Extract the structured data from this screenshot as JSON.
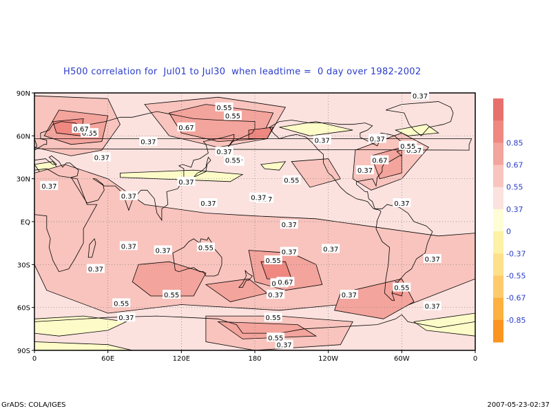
{
  "title": "H500 correlation for  Jul01 to Jul30  when leadtime =  0 day over 1982-2002",
  "footer": {
    "left": "GrADS: COLA/IGES",
    "right": "2007-05-23-02:37"
  },
  "axes": {
    "y_labels": [
      "90N",
      "60N",
      "30N",
      "EQ",
      "30S",
      "60S",
      "90S"
    ],
    "x_labels": [
      "0",
      "60E",
      "120E",
      "180",
      "120W",
      "60W",
      "0"
    ]
  },
  "legend": {
    "levels": [
      {
        "label": "",
        "color": "#e8706c"
      },
      {
        "label": "0.85",
        "color": "#ee8880"
      },
      {
        "label": "0.67",
        "color": "#f3a49c"
      },
      {
        "label": "0.55",
        "color": "#f8c4bd"
      },
      {
        "label": "0.37",
        "color": "#fbe2df"
      },
      {
        "label": "0",
        "color": "#fefdd6"
      },
      {
        "label": "-0.37",
        "color": "#fdf1a6"
      },
      {
        "label": "-0.55",
        "color": "#fde08a"
      },
      {
        "label": "-0.67",
        "color": "#fdcb6c"
      },
      {
        "label": "-0.85",
        "color": "#fcb140"
      },
      {
        "label": "",
        "color": "#fb9420"
      }
    ]
  },
  "colors": {
    "base": "#fbe2df",
    "level1": "#f8c4bd",
    "level2": "#f3a49c",
    "level3": "#ee8880",
    "neg1": "#fdfbc8",
    "title": "#2a3cc8"
  },
  "contour_labels": [
    {
      "text": "0.37",
      "lon": 315,
      "lat": 88
    },
    {
      "text": "0.37",
      "lon": 310,
      "lat": 50
    },
    {
      "text": "0.37",
      "lon": 280,
      "lat": 58
    },
    {
      "text": "0.37",
      "lon": 235,
      "lat": 57
    },
    {
      "text": "0.37",
      "lon": 270,
      "lat": 36
    },
    {
      "text": "0.37",
      "lon": 300,
      "lat": 13
    },
    {
      "text": "0.37",
      "lon": 188,
      "lat": 16
    },
    {
      "text": "0.37",
      "lon": 208,
      "lat": -2
    },
    {
      "text": "0.37",
      "lon": 242,
      "lat": -19
    },
    {
      "text": "0.37",
      "lon": 325,
      "lat": -26
    },
    {
      "text": "0.37",
      "lon": 257,
      "lat": -51
    },
    {
      "text": "0.37",
      "lon": 325,
      "lat": -59
    },
    {
      "text": "0.37",
      "lon": 197,
      "lat": -51
    },
    {
      "text": "0.37",
      "lon": 208,
      "lat": -21
    },
    {
      "text": "0.37",
      "lon": 183,
      "lat": 17
    },
    {
      "text": "0.37",
      "lon": 142,
      "lat": 13
    },
    {
      "text": "0.37",
      "lon": 124,
      "lat": 28
    },
    {
      "text": "0.37",
      "lon": 155,
      "lat": 49
    },
    {
      "text": "0.37",
      "lon": 164,
      "lat": 42
    },
    {
      "text": "0.37",
      "lon": 55,
      "lat": 45
    },
    {
      "text": "0.37",
      "lon": 93,
      "lat": 56
    },
    {
      "text": "0.37",
      "lon": 12,
      "lat": 25
    },
    {
      "text": "0.37",
      "lon": 77,
      "lat": 18
    },
    {
      "text": "0.37",
      "lon": 77,
      "lat": -17
    },
    {
      "text": "0.37",
      "lon": 105,
      "lat": -20
    },
    {
      "text": "0.37",
      "lon": 50,
      "lat": -33
    },
    {
      "text": "0.37",
      "lon": 75,
      "lat": -67
    },
    {
      "text": "0.37",
      "lon": 204,
      "lat": -86
    },
    {
      "text": "0.55",
      "lon": 155,
      "lat": 80
    },
    {
      "text": "0.55",
      "lon": 162,
      "lat": 74
    },
    {
      "text": "0.55",
      "lon": 162,
      "lat": 43
    },
    {
      "text": "0.55",
      "lon": 210,
      "lat": 29
    },
    {
      "text": "0.55",
      "lon": 305,
      "lat": 53
    },
    {
      "text": "0.55",
      "lon": 45,
      "lat": 62
    },
    {
      "text": "0.55",
      "lon": 140,
      "lat": -18
    },
    {
      "text": "0.55",
      "lon": 195,
      "lat": -27
    },
    {
      "text": "0.55",
      "lon": 200,
      "lat": -43
    },
    {
      "text": "0.55",
      "lon": 300,
      "lat": -46
    },
    {
      "text": "0.55",
      "lon": 112,
      "lat": -51
    },
    {
      "text": "0.55",
      "lon": 71,
      "lat": -57
    },
    {
      "text": "0.55",
      "lon": 195,
      "lat": -67
    },
    {
      "text": "0.55",
      "lon": 197,
      "lat": -81
    },
    {
      "text": "0.67",
      "lon": 124,
      "lat": 66
    },
    {
      "text": "0.67",
      "lon": 38,
      "lat": 65
    },
    {
      "text": "0.67",
      "lon": 282,
      "lat": 43
    },
    {
      "text": "0.67",
      "lon": 205,
      "lat": -42
    }
  ]
}
